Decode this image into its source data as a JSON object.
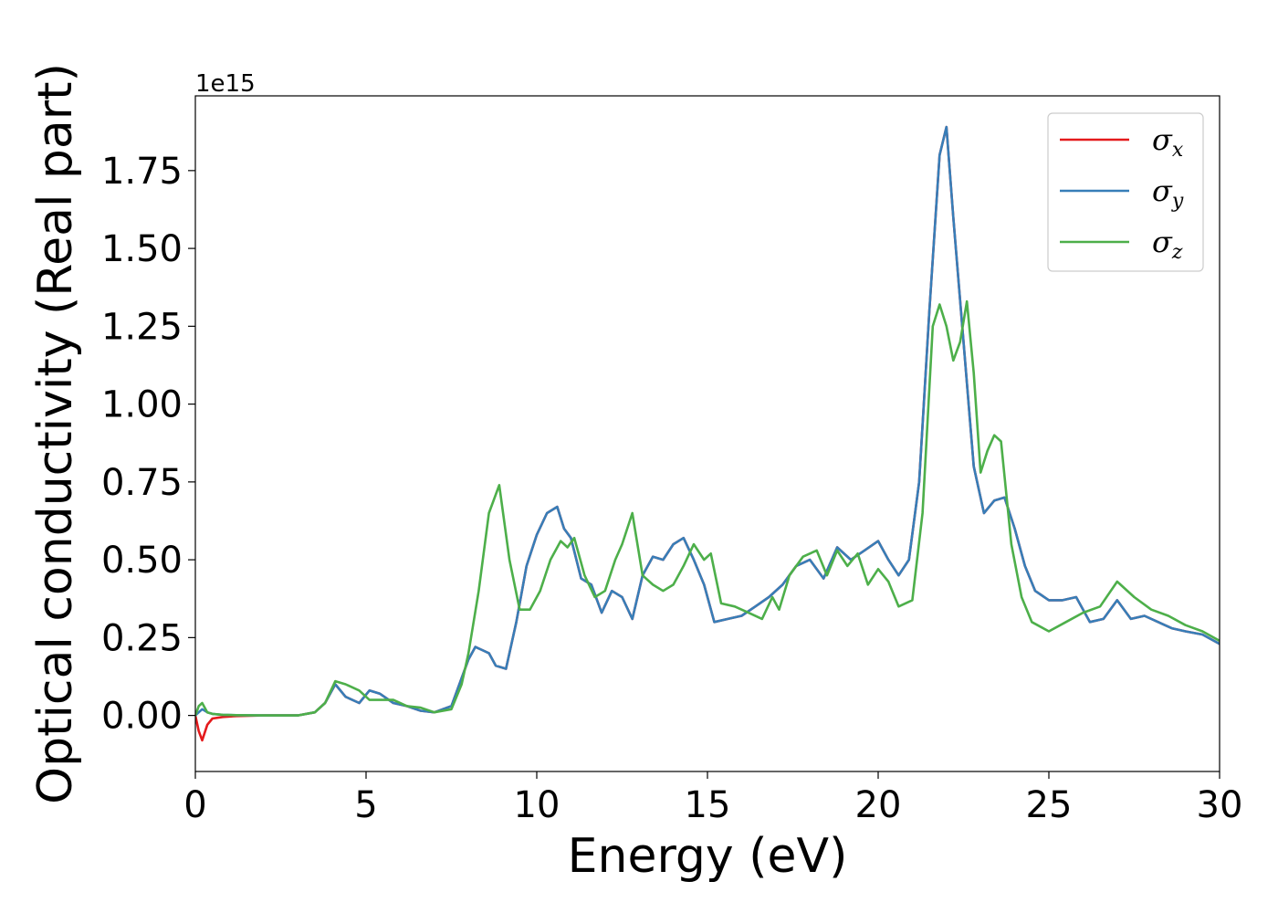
{
  "chart_data": {
    "type": "line",
    "xlabel": "Energy (eV)",
    "ylabel": "Optical conductivity (Real part)",
    "offset_text": "1e15",
    "xlim": [
      0,
      30
    ],
    "ylim": [
      -0.18,
      1.99
    ],
    "x_ticks": [
      0,
      5,
      10,
      15,
      20,
      25,
      30
    ],
    "x_tick_labels": [
      "0",
      "5",
      "10",
      "15",
      "20",
      "25",
      "30"
    ],
    "y_ticks": [
      0,
      0.25,
      0.5,
      0.75,
      1.0,
      1.25,
      1.5,
      1.75
    ],
    "y_tick_labels": [
      "0.00",
      "0.25",
      "0.50",
      "0.75",
      "1.00",
      "1.25",
      "1.50",
      "1.75"
    ],
    "grid": false,
    "legend_position": "top-right",
    "series": [
      {
        "name": "σx",
        "legend_symbol": "σ",
        "legend_sub": "x",
        "color": "#e41a1c",
        "x": [
          0,
          0.1,
          0.2,
          0.35,
          0.5,
          0.8,
          1.2,
          2,
          3,
          3.5,
          3.8,
          4.1,
          4.4,
          4.8,
          5.1,
          5.4,
          5.8,
          6.2,
          6.6,
          7,
          7.5,
          7.8,
          8,
          8.2,
          8.4,
          8.6,
          8.8,
          9.1,
          9.4,
          9.7,
          10,
          10.3,
          10.6,
          10.8,
          11,
          11.3,
          11.6,
          11.9,
          12.2,
          12.5,
          12.8,
          13.1,
          13.4,
          13.7,
          14,
          14.3,
          14.6,
          14.9,
          15.2,
          15.6,
          16,
          16.4,
          16.8,
          17.2,
          17.6,
          18,
          18.4,
          18.8,
          19.2,
          19.6,
          20,
          20.3,
          20.6,
          20.9,
          21.2,
          21.5,
          21.8,
          22,
          22.2,
          22.5,
          22.8,
          23.1,
          23.4,
          23.7,
          24,
          24.3,
          24.6,
          25,
          25.4,
          25.8,
          26.2,
          26.6,
          27,
          27.4,
          27.8,
          28.2,
          28.6,
          29,
          29.5,
          30
        ],
        "y": [
          0,
          -0.05,
          -0.08,
          -0.03,
          -0.01,
          -0.005,
          -0.002,
          0,
          0,
          0.01,
          0.04,
          0.1,
          0.06,
          0.04,
          0.08,
          0.07,
          0.04,
          0.03,
          0.015,
          0.01,
          0.03,
          0.12,
          0.18,
          0.22,
          0.21,
          0.2,
          0.16,
          0.15,
          0.3,
          0.48,
          0.58,
          0.65,
          0.67,
          0.6,
          0.57,
          0.44,
          0.42,
          0.33,
          0.4,
          0.38,
          0.31,
          0.45,
          0.51,
          0.5,
          0.55,
          0.57,
          0.5,
          0.42,
          0.3,
          0.31,
          0.32,
          0.35,
          0.38,
          0.42,
          0.48,
          0.5,
          0.44,
          0.54,
          0.5,
          0.53,
          0.56,
          0.5,
          0.45,
          0.5,
          0.75,
          1.3,
          1.8,
          1.89,
          1.6,
          1.2,
          0.8,
          0.65,
          0.69,
          0.7,
          0.6,
          0.48,
          0.4,
          0.37,
          0.37,
          0.38,
          0.3,
          0.31,
          0.37,
          0.31,
          0.32,
          0.3,
          0.28,
          0.27,
          0.26,
          0.23
        ]
      },
      {
        "name": "σy",
        "legend_symbol": "σ",
        "legend_sub": "y",
        "color": "#377eb8",
        "x": [
          0,
          0.1,
          0.2,
          0.35,
          0.5,
          0.8,
          1.2,
          2,
          3,
          3.5,
          3.8,
          4.1,
          4.4,
          4.8,
          5.1,
          5.4,
          5.8,
          6.2,
          6.6,
          7,
          7.5,
          7.8,
          8,
          8.2,
          8.4,
          8.6,
          8.8,
          9.1,
          9.4,
          9.7,
          10,
          10.3,
          10.6,
          10.8,
          11,
          11.3,
          11.6,
          11.9,
          12.2,
          12.5,
          12.8,
          13.1,
          13.4,
          13.7,
          14,
          14.3,
          14.6,
          14.9,
          15.2,
          15.6,
          16,
          16.4,
          16.8,
          17.2,
          17.6,
          18,
          18.4,
          18.8,
          19.2,
          19.6,
          20,
          20.3,
          20.6,
          20.9,
          21.2,
          21.5,
          21.8,
          22,
          22.2,
          22.5,
          22.8,
          23.1,
          23.4,
          23.7,
          24,
          24.3,
          24.6,
          25,
          25.4,
          25.8,
          26.2,
          26.6,
          27,
          27.4,
          27.8,
          28.2,
          28.6,
          29,
          29.5,
          30
        ],
        "y": [
          0,
          0.01,
          0.02,
          0.01,
          0.005,
          0.002,
          0.001,
          0,
          0,
          0.01,
          0.04,
          0.1,
          0.06,
          0.04,
          0.08,
          0.07,
          0.04,
          0.03,
          0.015,
          0.01,
          0.03,
          0.12,
          0.18,
          0.22,
          0.21,
          0.2,
          0.16,
          0.15,
          0.3,
          0.48,
          0.58,
          0.65,
          0.67,
          0.6,
          0.57,
          0.44,
          0.42,
          0.33,
          0.4,
          0.38,
          0.31,
          0.45,
          0.51,
          0.5,
          0.55,
          0.57,
          0.5,
          0.42,
          0.3,
          0.31,
          0.32,
          0.35,
          0.38,
          0.42,
          0.48,
          0.5,
          0.44,
          0.54,
          0.5,
          0.53,
          0.56,
          0.5,
          0.45,
          0.5,
          0.75,
          1.3,
          1.8,
          1.89,
          1.6,
          1.2,
          0.8,
          0.65,
          0.69,
          0.7,
          0.6,
          0.48,
          0.4,
          0.37,
          0.37,
          0.38,
          0.3,
          0.31,
          0.37,
          0.31,
          0.32,
          0.3,
          0.28,
          0.27,
          0.26,
          0.23
        ]
      },
      {
        "name": "σz",
        "legend_symbol": "σ",
        "legend_sub": "z",
        "color": "#4daf4a",
        "x": [
          0,
          0.1,
          0.2,
          0.35,
          0.5,
          0.8,
          1.2,
          2,
          3,
          3.5,
          3.8,
          4.1,
          4.4,
          4.8,
          5.1,
          5.4,
          5.8,
          6.2,
          6.6,
          7,
          7.5,
          7.8,
          8,
          8.3,
          8.6,
          8.9,
          9.2,
          9.5,
          9.8,
          10.1,
          10.4,
          10.7,
          10.9,
          11.1,
          11.4,
          11.7,
          12,
          12.3,
          12.5,
          12.8,
          13.1,
          13.4,
          13.7,
          14,
          14.3,
          14.6,
          14.9,
          15.1,
          15.4,
          15.8,
          16.2,
          16.6,
          16.9,
          17.1,
          17.4,
          17.8,
          18.2,
          18.5,
          18.8,
          19.1,
          19.4,
          19.7,
          20,
          20.3,
          20.6,
          21,
          21.3,
          21.6,
          21.8,
          22,
          22.2,
          22.4,
          22.6,
          22.8,
          23,
          23.2,
          23.4,
          23.6,
          23.9,
          24.2,
          24.5,
          25,
          25.5,
          26,
          26.5,
          27,
          27.5,
          28,
          28.5,
          29,
          29.5,
          30
        ],
        "y": [
          0,
          0.03,
          0.04,
          0.01,
          0.005,
          0.002,
          0.001,
          0,
          0,
          0.01,
          0.04,
          0.11,
          0.1,
          0.08,
          0.05,
          0.05,
          0.05,
          0.03,
          0.025,
          0.01,
          0.02,
          0.1,
          0.2,
          0.4,
          0.65,
          0.74,
          0.5,
          0.34,
          0.34,
          0.4,
          0.5,
          0.56,
          0.54,
          0.57,
          0.45,
          0.38,
          0.4,
          0.5,
          0.55,
          0.65,
          0.45,
          0.42,
          0.4,
          0.42,
          0.48,
          0.55,
          0.5,
          0.52,
          0.36,
          0.35,
          0.33,
          0.31,
          0.38,
          0.34,
          0.45,
          0.51,
          0.53,
          0.45,
          0.53,
          0.48,
          0.52,
          0.42,
          0.47,
          0.43,
          0.35,
          0.37,
          0.65,
          1.25,
          1.32,
          1.25,
          1.14,
          1.2,
          1.33,
          1.1,
          0.78,
          0.85,
          0.9,
          0.88,
          0.55,
          0.38,
          0.3,
          0.27,
          0.3,
          0.33,
          0.35,
          0.43,
          0.38,
          0.34,
          0.32,
          0.29,
          0.27,
          0.24
        ]
      }
    ]
  }
}
